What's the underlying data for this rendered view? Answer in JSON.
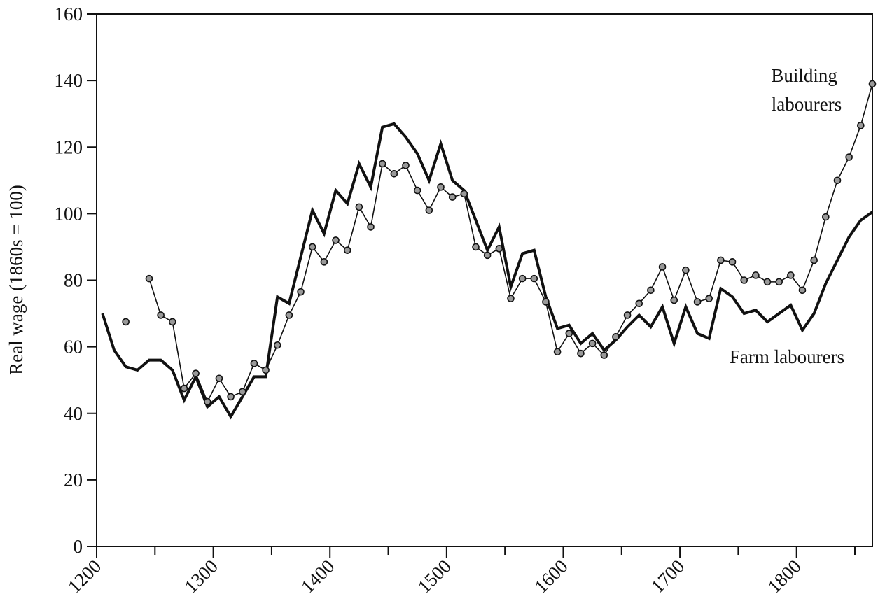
{
  "chart_data": {
    "type": "line",
    "title": "",
    "xlabel": "",
    "ylabel": "Real wage (1860s = 100)",
    "xlim": [
      1200,
      1865
    ],
    "ylim": [
      0,
      160
    ],
    "xticks": [
      1200,
      1250,
      1300,
      1350,
      1400,
      1450,
      1500,
      1550,
      1600,
      1650,
      1700,
      1750,
      1800,
      1850
    ],
    "xtick_labels": [
      "1200",
      "1300",
      "1400",
      "1500",
      "1600",
      "1700",
      "1800"
    ],
    "yticks": [
      0,
      20,
      40,
      60,
      80,
      100,
      120,
      140,
      160
    ],
    "ytick_labels": [
      "0",
      "20",
      "40",
      "60",
      "80",
      "100",
      "120",
      "140",
      "160"
    ],
    "grid": false,
    "legend": "none",
    "annotations": [
      {
        "lines": [
          "Building",
          "labourers"
        ],
        "series": "building"
      },
      {
        "lines": [
          "Farm labourers"
        ],
        "series": "farm"
      }
    ],
    "series": [
      {
        "id": "farm",
        "name": "Farm labourers",
        "style": "thick-line",
        "color": "#111111",
        "x": [
          1205,
          1215,
          1225,
          1235,
          1245,
          1255,
          1265,
          1275,
          1285,
          1295,
          1305,
          1315,
          1325,
          1335,
          1345,
          1355,
          1365,
          1375,
          1385,
          1395,
          1405,
          1415,
          1425,
          1435,
          1445,
          1455,
          1465,
          1475,
          1485,
          1495,
          1505,
          1515,
          1525,
          1535,
          1545,
          1555,
          1565,
          1575,
          1585,
          1595,
          1605,
          1615,
          1625,
          1635,
          1645,
          1655,
          1665,
          1675,
          1685,
          1695,
          1705,
          1715,
          1725,
          1735,
          1745,
          1755,
          1765,
          1775,
          1785,
          1795,
          1805,
          1815,
          1825,
          1835,
          1845,
          1855,
          1865
        ],
        "y": [
          70,
          59,
          54,
          53,
          56,
          56,
          53,
          44,
          51,
          42,
          45,
          39,
          45,
          51,
          51,
          75,
          73,
          87,
          101,
          94,
          107,
          103,
          115,
          108,
          126,
          127,
          123,
          118,
          110,
          121,
          110,
          107,
          98,
          89,
          96,
          78,
          88,
          89,
          75,
          65.5,
          66.5,
          61,
          64,
          59,
          62,
          66,
          69.5,
          66,
          72,
          61,
          72,
          64,
          62.5,
          77.5,
          75,
          70,
          71,
          67.5,
          70,
          72.5,
          65,
          70,
          79,
          86,
          93,
          98,
          100.5
        ]
      },
      {
        "id": "building",
        "name": "Building labourers",
        "style": "line-markers",
        "color": "#111111",
        "marker_color": "#999999",
        "segments": [
          {
            "x": [
              1225
            ],
            "y": [
              67.5
            ]
          },
          {
            "x": [
              1245,
              1255,
              1265,
              1275,
              1285,
              1295,
              1305,
              1315,
              1325,
              1335,
              1345,
              1355,
              1365,
              1375,
              1385,
              1395,
              1405,
              1415,
              1425,
              1435,
              1445,
              1455,
              1465,
              1475,
              1485,
              1495,
              1505,
              1515,
              1525,
              1535,
              1545,
              1555,
              1565,
              1575,
              1585,
              1595,
              1605,
              1615,
              1625,
              1635,
              1645,
              1655,
              1665,
              1675,
              1685,
              1695,
              1705,
              1715,
              1725,
              1735,
              1745,
              1755,
              1765,
              1775,
              1785,
              1795,
              1805,
              1815,
              1825,
              1835,
              1845,
              1855,
              1865
            ],
            "y": [
              80.5,
              69.5,
              67.5,
              47.5,
              52,
              43.5,
              50.5,
              45,
              46.5,
              55,
              53,
              60.5,
              69.5,
              76.5,
              90,
              85.5,
              92,
              89,
              102,
              96,
              115,
              112,
              114.5,
              107,
              101,
              108,
              105,
              106,
              90,
              87.5,
              89.5,
              74.5,
              80.5,
              80.5,
              73.5,
              58.5,
              64,
              58,
              61,
              57.5,
              63,
              69.5,
              73,
              77,
              84,
              74,
              83,
              73.5,
              74.5,
              86,
              85.5,
              80,
              81.5,
              79.5,
              79.5,
              81.5,
              77,
              86,
              99,
              110,
              117,
              126.5,
              139
            ]
          }
        ]
      }
    ]
  }
}
